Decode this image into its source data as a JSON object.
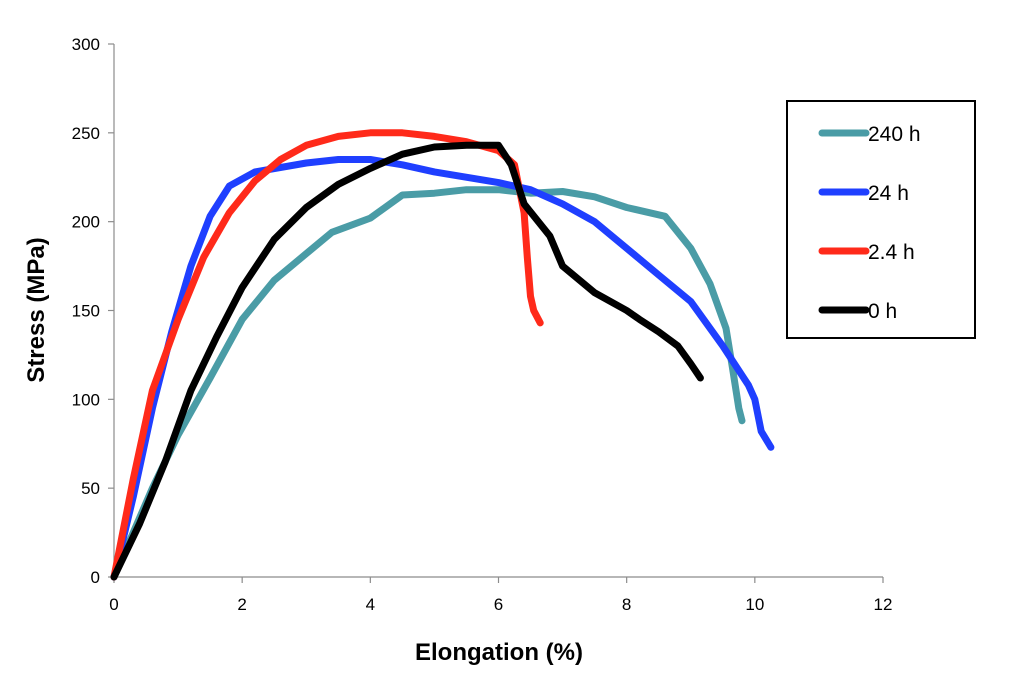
{
  "chart_data": {
    "type": "line",
    "xlabel": "Elongation (%)",
    "ylabel": "Stress (MPa)",
    "xlim": [
      0,
      12
    ],
    "ylim": [
      0,
      300
    ],
    "xticks": [
      "0",
      "2",
      "4",
      "6",
      "8",
      "10",
      "12"
    ],
    "yticks": [
      "0",
      "50",
      "100",
      "150",
      "200",
      "250",
      "300"
    ],
    "grid": false,
    "legend": "right",
    "series": [
      {
        "name": "240 h",
        "color": "#4A9CA6",
        "points": [
          [
            0,
            0
          ],
          [
            0.3,
            25
          ],
          [
            0.6,
            50
          ],
          [
            1.0,
            80
          ],
          [
            1.5,
            112
          ],
          [
            2.0,
            145
          ],
          [
            2.5,
            167
          ],
          [
            3.0,
            182
          ],
          [
            3.4,
            194
          ],
          [
            4.0,
            202
          ],
          [
            4.5,
            215
          ],
          [
            5.0,
            216
          ],
          [
            5.5,
            218
          ],
          [
            6.0,
            218
          ],
          [
            6.5,
            216
          ],
          [
            7.0,
            217
          ],
          [
            7.5,
            214
          ],
          [
            8.0,
            208
          ],
          [
            8.6,
            203
          ],
          [
            9.0,
            185
          ],
          [
            9.3,
            165
          ],
          [
            9.55,
            140
          ],
          [
            9.65,
            118
          ],
          [
            9.75,
            95
          ],
          [
            9.8,
            88
          ]
        ]
      },
      {
        "name": "24 h",
        "color": "#1F3FFF",
        "points": [
          [
            0,
            0
          ],
          [
            0.3,
            45
          ],
          [
            0.6,
            95
          ],
          [
            0.9,
            138
          ],
          [
            1.2,
            175
          ],
          [
            1.5,
            203
          ],
          [
            1.8,
            220
          ],
          [
            2.2,
            228
          ],
          [
            3.0,
            233
          ],
          [
            3.5,
            235
          ],
          [
            4.0,
            235
          ],
          [
            4.5,
            232
          ],
          [
            5.0,
            228
          ],
          [
            6.0,
            222
          ],
          [
            6.5,
            218
          ],
          [
            7.0,
            210
          ],
          [
            7.5,
            200
          ],
          [
            8.0,
            185
          ],
          [
            8.5,
            170
          ],
          [
            9.0,
            155
          ],
          [
            9.5,
            130
          ],
          [
            9.9,
            108
          ],
          [
            10.0,
            100
          ],
          [
            10.1,
            82
          ],
          [
            10.25,
            73
          ]
        ]
      },
      {
        "name": "2.4 h",
        "color": "#FF2A1A",
        "points": [
          [
            0,
            0
          ],
          [
            0.3,
            55
          ],
          [
            0.6,
            105
          ],
          [
            1.0,
            145
          ],
          [
            1.4,
            180
          ],
          [
            1.8,
            205
          ],
          [
            2.2,
            223
          ],
          [
            2.6,
            235
          ],
          [
            3.0,
            243
          ],
          [
            3.5,
            248
          ],
          [
            4.0,
            250
          ],
          [
            4.5,
            250
          ],
          [
            5.0,
            248
          ],
          [
            5.5,
            245
          ],
          [
            6.0,
            240
          ],
          [
            6.25,
            232
          ],
          [
            6.4,
            205
          ],
          [
            6.45,
            180
          ],
          [
            6.5,
            158
          ],
          [
            6.55,
            150
          ],
          [
            6.65,
            143
          ]
        ]
      },
      {
        "name": "0 h",
        "color": "#000000",
        "points": [
          [
            0,
            0
          ],
          [
            0.4,
            30
          ],
          [
            0.8,
            65
          ],
          [
            1.2,
            105
          ],
          [
            1.6,
            135
          ],
          [
            2.0,
            163
          ],
          [
            2.5,
            190
          ],
          [
            3.0,
            208
          ],
          [
            3.5,
            221
          ],
          [
            4.0,
            230
          ],
          [
            4.5,
            238
          ],
          [
            5.0,
            242
          ],
          [
            5.5,
            243
          ],
          [
            6.0,
            243
          ],
          [
            6.2,
            232
          ],
          [
            6.4,
            210
          ],
          [
            6.8,
            192
          ],
          [
            7.0,
            175
          ],
          [
            7.5,
            160
          ],
          [
            8.0,
            150
          ],
          [
            8.2,
            145
          ],
          [
            8.5,
            138
          ],
          [
            8.8,
            130
          ],
          [
            9.0,
            120
          ],
          [
            9.15,
            112
          ]
        ]
      }
    ]
  }
}
